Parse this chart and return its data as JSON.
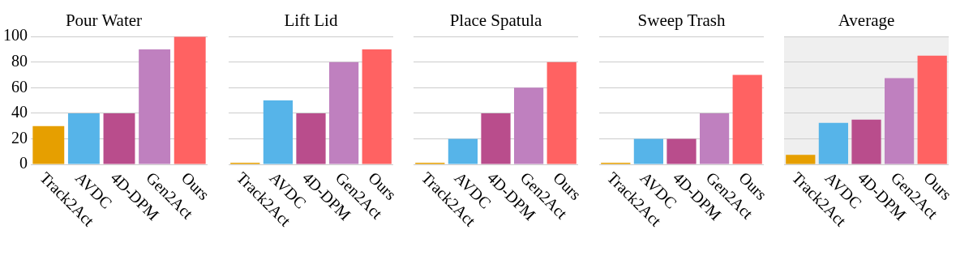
{
  "chart_data": [
    {
      "type": "bar",
      "title": "Pour Water",
      "categories": [
        "Track2Act",
        "AVDC",
        "4D-DPM",
        "Gen2Act",
        "Ours"
      ],
      "values": [
        30,
        40,
        40,
        90,
        100
      ],
      "colors": [
        "#e69f00",
        "#56b4e9",
        "#b94d8c",
        "#bf80bf",
        "#ff6262"
      ],
      "ylim": [
        0,
        100
      ],
      "yticks": [
        0,
        20,
        40,
        60,
        80,
        100
      ],
      "grid": "y"
    },
    {
      "type": "bar",
      "title": "Lift Lid",
      "categories": [
        "Track2Act",
        "AVDC",
        "4D-DPM",
        "Gen2Act",
        "Ours"
      ],
      "values": [
        0,
        50,
        40,
        80,
        90
      ],
      "colors": [
        "#e69f00",
        "#56b4e9",
        "#b94d8c",
        "#bf80bf",
        "#ff6262"
      ],
      "ylim": [
        0,
        100
      ],
      "yticks": [
        0,
        20,
        40,
        60,
        80,
        100
      ],
      "grid": "y",
      "tick_labels": "x"
    },
    {
      "type": "bar",
      "title": "Place Spatula",
      "categories": [
        "Track2Act",
        "AVDC",
        "4D-DPM",
        "Gen2Act",
        "Ours"
      ],
      "values": [
        0,
        20,
        40,
        60,
        80
      ],
      "colors": [
        "#e69f00",
        "#56b4e9",
        "#b94d8c",
        "#bf80bf",
        "#ff6262"
      ],
      "ylim": [
        0,
        100
      ],
      "yticks": [
        0,
        20,
        40,
        60,
        80,
        100
      ],
      "grid": "y",
      "tick_labels": "x"
    },
    {
      "type": "bar",
      "title": "Sweep Trash",
      "categories": [
        "Track2Act",
        "AVDC",
        "4D-DPM",
        "Gen2Act",
        "Ours"
      ],
      "values": [
        0,
        20,
        20,
        40,
        70
      ],
      "colors": [
        "#e69f00",
        "#56b4e9",
        "#b94d8c",
        "#bf80bf",
        "#ff6262"
      ],
      "ylim": [
        0,
        100
      ],
      "yticks": [
        0,
        20,
        40,
        60,
        80,
        100
      ],
      "grid": "y",
      "tick_labels": "x"
    },
    {
      "type": "bar",
      "title": "Average",
      "categories": [
        "Track2Act",
        "AVDC",
        "4D-DPM",
        "Gen2Act",
        "Ours"
      ],
      "values": [
        7.5,
        32.5,
        35,
        67.5,
        85
      ],
      "colors": [
        "#e69f00",
        "#56b4e9",
        "#b94d8c",
        "#bf80bf",
        "#ff6262"
      ],
      "ylim": [
        0,
        100
      ],
      "yticks": [
        0,
        20,
        40,
        60,
        80,
        100
      ],
      "grid": "y",
      "tick_labels": "x"
    }
  ]
}
